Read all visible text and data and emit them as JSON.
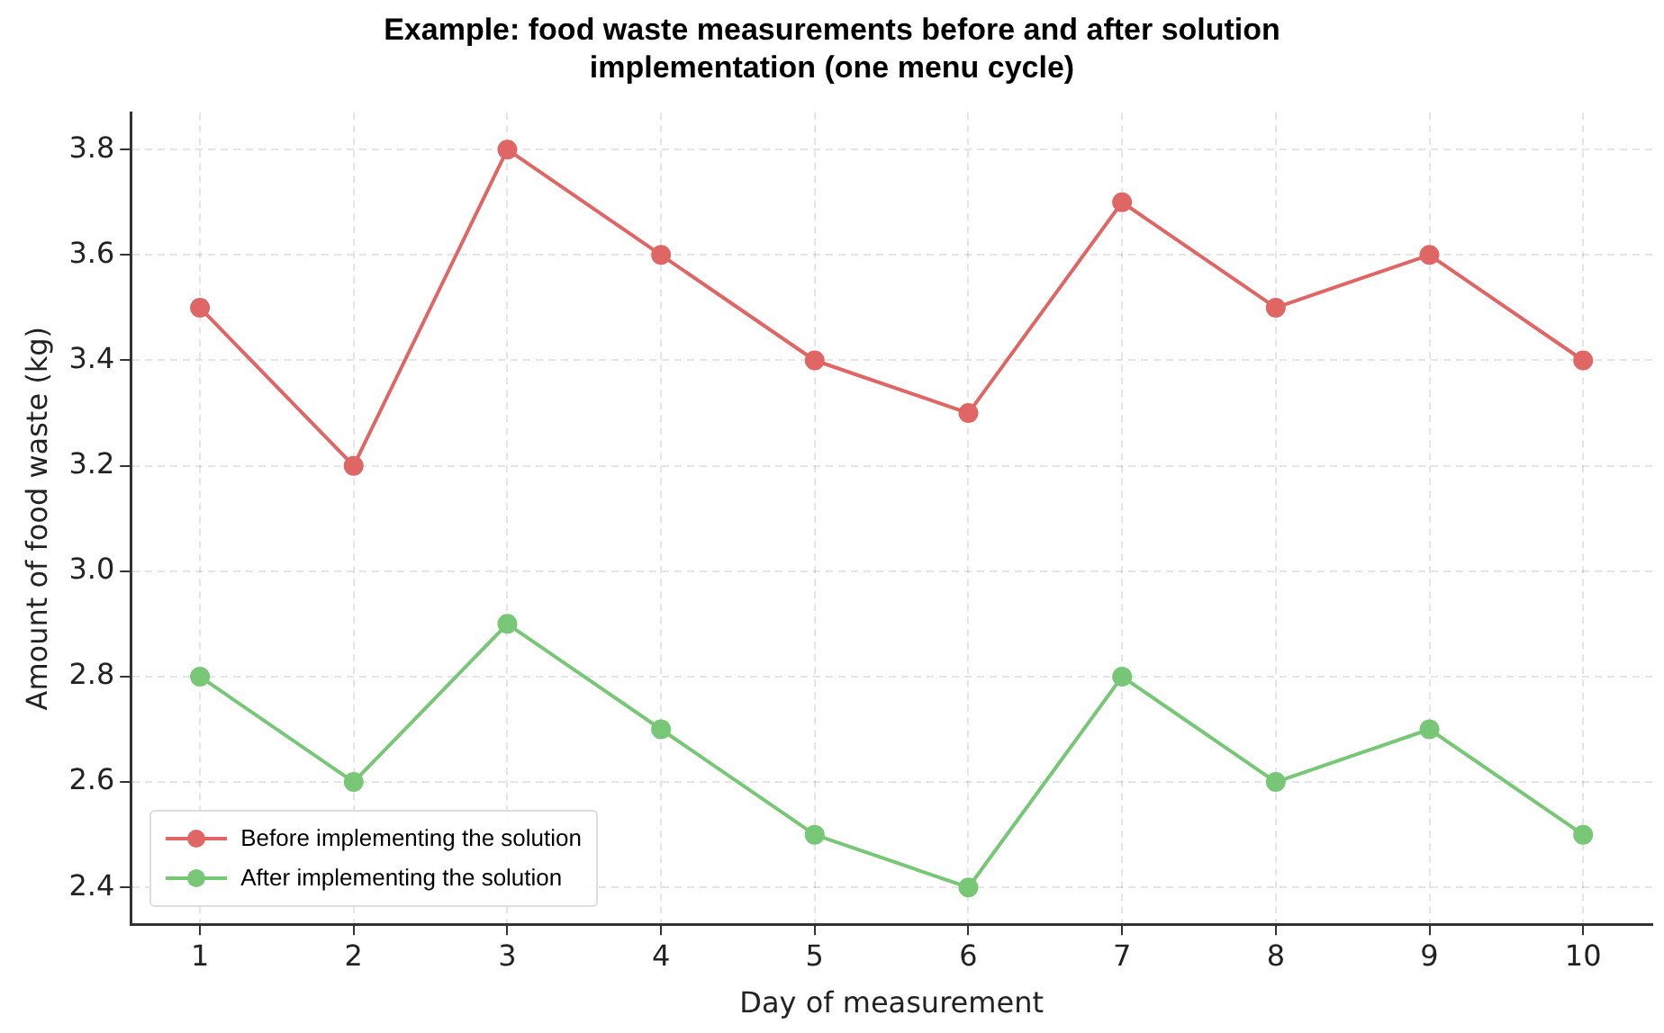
{
  "chart_data": {
    "type": "line",
    "title": "Example: food waste measurements before and after solution implementation (one menu cycle)",
    "xlabel": "Day of measurement",
    "ylabel": "Amount of food waste (kg)",
    "x": [
      1,
      2,
      3,
      4,
      5,
      6,
      7,
      8,
      9,
      10
    ],
    "series": [
      {
        "name": "Before implementing the solution",
        "color": "#e06666",
        "values": [
          3.5,
          3.2,
          3.8,
          3.6,
          3.4,
          3.3,
          3.7,
          3.5,
          3.6,
          3.4
        ]
      },
      {
        "name": "After implementing the solution",
        "color": "#77c777",
        "values": [
          2.8,
          2.6,
          2.9,
          2.7,
          2.5,
          2.4,
          2.8,
          2.6,
          2.7,
          2.5
        ]
      }
    ],
    "xlim": [
      0.55,
      10.45
    ],
    "xticks": [
      1,
      2,
      3,
      4,
      5,
      6,
      7,
      8,
      9,
      10
    ],
    "ylim": [
      2.33,
      3.87
    ],
    "yticks": [
      2.4,
      2.6,
      2.8,
      {
        "value": 3,
        "label": "3.0"
      },
      3.2,
      3.4,
      3.6,
      3.8
    ],
    "grid": true,
    "legend": "bottom left",
    "marker": "circle",
    "line_style": "solid"
  }
}
